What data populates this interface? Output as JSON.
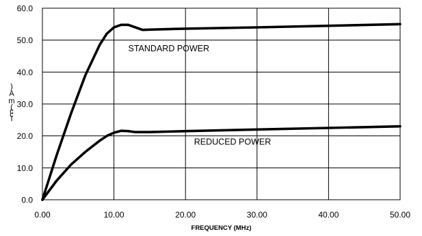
{
  "chart_data": {
    "type": "line",
    "title": "",
    "xlabel": "FREQUENCY (MHz)",
    "ylabel": "",
    "ylabel_fragments": [
      ")",
      "A",
      "m",
      "(",
      "c",
      "c",
      "I"
    ],
    "xlim": [
      0,
      50
    ],
    "ylim": [
      0,
      60
    ],
    "xticks": [
      0,
      10,
      20,
      30,
      40,
      50
    ],
    "xtick_labels": [
      "0.00",
      "10.00",
      "20.00",
      "30.00",
      "40.00",
      "50.00"
    ],
    "yticks": [
      0,
      10,
      20,
      30,
      40,
      50,
      60
    ],
    "ytick_labels": [
      "0.0",
      "10.0",
      "20.0",
      "30.0",
      "40.0",
      "50.0",
      "60.0"
    ],
    "grid": true,
    "line_color": "#000000",
    "series": [
      {
        "name": "STANDARD POWER",
        "x": [
          0,
          2,
          4,
          6,
          8,
          9,
          10,
          11,
          12,
          13,
          14,
          15,
          20,
          30,
          40,
          50
        ],
        "y": [
          0,
          14,
          27,
          39,
          48.5,
          52,
          54,
          54.8,
          54.8,
          54,
          53.2,
          53.3,
          53.6,
          54,
          54.5,
          55
        ]
      },
      {
        "name": "REDUCED POWER",
        "x": [
          0,
          2,
          4,
          6,
          8,
          9,
          10,
          11,
          12,
          13,
          15,
          20,
          30,
          40,
          50
        ],
        "y": [
          0,
          6,
          11,
          15,
          18.5,
          20,
          21,
          21.6,
          21.5,
          21.2,
          21.2,
          21.5,
          22,
          22.5,
          23
        ]
      }
    ],
    "annotations": [
      {
        "text": "STANDARD POWER",
        "x": 12,
        "y": 46.5
      },
      {
        "text": "REDUCED POWER",
        "x": 21.2,
        "y": 17.3
      }
    ]
  }
}
